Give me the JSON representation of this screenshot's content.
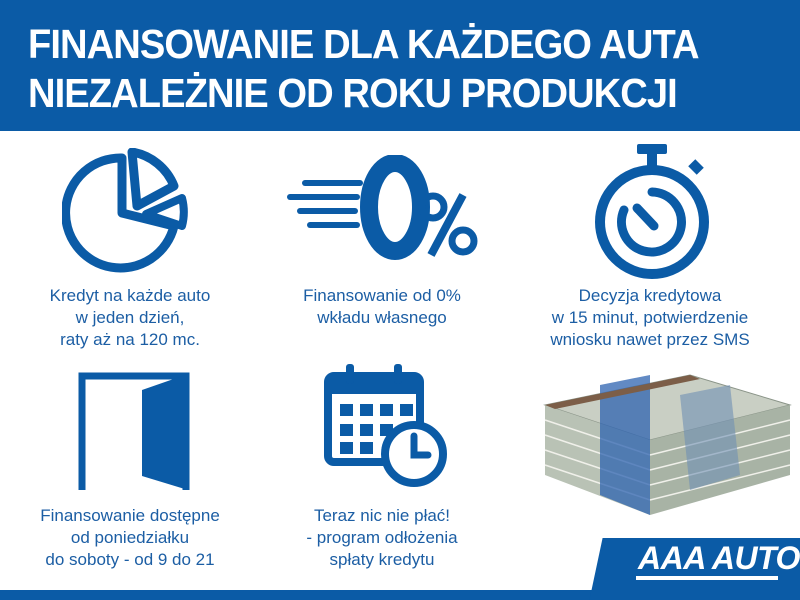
{
  "header": {
    "line1": "FINANSOWANIE DLA KAŻDEGO AUTA",
    "line2": "NIEZALEŻNIE OD ROKU PRODUKCJI"
  },
  "features": [
    {
      "icon": "pie-chart-icon",
      "lines": [
        "Kredyt na każde auto",
        "w jeden dzień,",
        "raty aż na 120 mc."
      ]
    },
    {
      "icon": "zero-percent-icon",
      "lines": [
        "Finansowanie od 0%",
        "wkładu własnego"
      ]
    },
    {
      "icon": "stopwatch-icon",
      "lines": [
        "Decyzja kredytowa",
        "w 15 minut, potwierdzenie",
        "wniosku nawet przez SMS"
      ]
    },
    {
      "icon": "open-door-icon",
      "lines": [
        "Finansowanie dostępne",
        "od poniedziałku",
        "do soboty - od 9 do 21"
      ]
    },
    {
      "icon": "calendar-clock-icon",
      "lines": [
        "Teraz nic nie płać!",
        "- program odłożenia",
        "spłaty kredytu"
      ]
    }
  ],
  "logo": {
    "text": "AAA AUTO"
  },
  "colors": {
    "brand_blue": "#0b5ba6"
  }
}
